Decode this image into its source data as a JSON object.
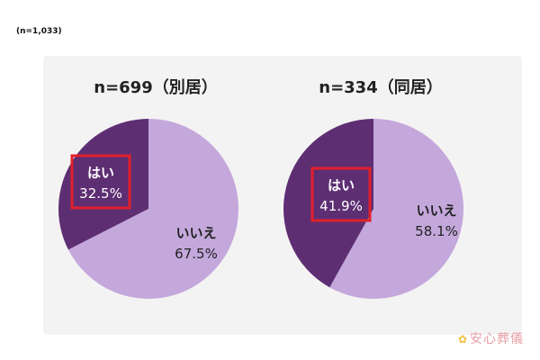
{
  "sample_note": "(n=1,033)",
  "chart_data": [
    {
      "type": "pie",
      "title": "n=699（別居）",
      "slices": [
        {
          "label": "はい",
          "value": 32.5,
          "value_label": "32.5%",
          "color": "#5e2e73",
          "highlighted": true
        },
        {
          "label": "いいえ",
          "value": 67.5,
          "value_label": "67.5%",
          "color": "#c4a8dc",
          "highlighted": false
        }
      ]
    },
    {
      "type": "pie",
      "title": "n=334（同居）",
      "slices": [
        {
          "label": "はい",
          "value": 41.9,
          "value_label": "41.9%",
          "color": "#5e2e73",
          "highlighted": true
        },
        {
          "label": "いいえ",
          "value": 58.1,
          "value_label": "58.1%",
          "color": "#c4a8dc",
          "highlighted": false
        }
      ]
    }
  ],
  "colors": {
    "yes": "#5e2e73",
    "no": "#c4a8dc",
    "highlight_box": "#e0202a"
  },
  "watermark": {
    "text": "安心葬儀",
    "icon": "flower-icon"
  }
}
